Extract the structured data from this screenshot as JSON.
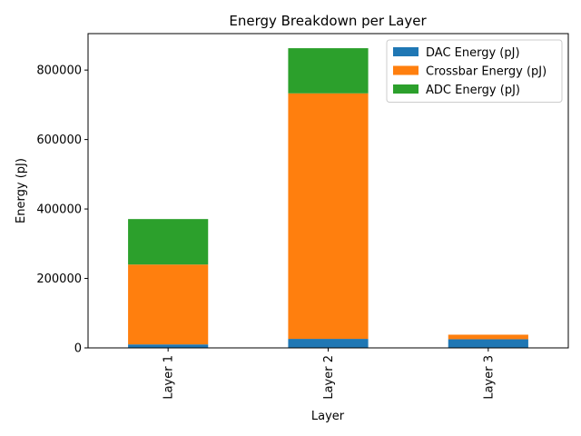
{
  "chart_data": {
    "type": "bar",
    "stacked": true,
    "title": "Energy Breakdown per Layer",
    "xlabel": "Layer",
    "ylabel": "Energy (pJ)",
    "categories": [
      "Layer 1",
      "Layer 2",
      "Layer 3"
    ],
    "series": [
      {
        "name": "DAC Energy (pJ)",
        "color": "#1f77b4",
        "values": [
          10000,
          26000,
          25000
        ]
      },
      {
        "name": "Crossbar Energy (pJ)",
        "color": "#ff7f0e",
        "values": [
          230000,
          707000,
          13000
        ]
      },
      {
        "name": "ADC Energy (pJ)",
        "color": "#2ca02c",
        "values": [
          131000,
          130000,
          0
        ]
      }
    ],
    "ylim": [
      0,
      905000
    ],
    "yticks": [
      0,
      200000,
      400000,
      600000,
      800000
    ],
    "ytick_labels": [
      "0",
      "200000",
      "400000",
      "600000",
      "800000"
    ],
    "xtick_rotation": "vertical",
    "grid": false,
    "legend_position": "upper right"
  }
}
